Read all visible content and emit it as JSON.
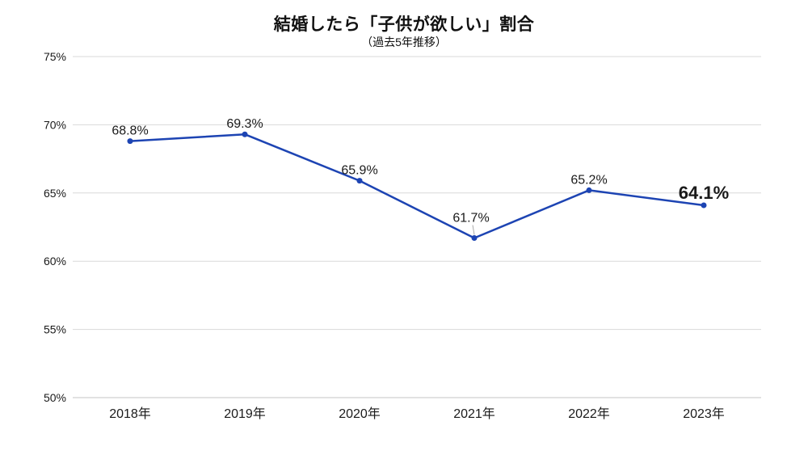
{
  "chart_data": {
    "type": "line",
    "title": "結婚したら「子供が欲しい」割合",
    "subtitle": "（過去5年推移）",
    "categories": [
      "2018年",
      "2019年",
      "2020年",
      "2021年",
      "2022年",
      "2023年"
    ],
    "values": [
      68.8,
      69.3,
      65.9,
      61.7,
      65.2,
      64.1
    ],
    "point_labels": [
      "68.8%",
      "69.3%",
      "65.9%",
      "61.7%",
      "65.2%",
      "64.1%"
    ],
    "ylim": [
      50,
      75
    ],
    "ytick_step": 5,
    "ytick_labels": [
      "50%",
      "55%",
      "60%",
      "65%",
      "70%",
      "75%"
    ],
    "legend": "none",
    "grid": "horizontal",
    "colors": {
      "line": "#1d44b3",
      "marker": "#1d44b3",
      "grid": "#d9d9d9",
      "axis": "#c6c6c6",
      "label": "#1a1a1a",
      "highlight": "#e8191c",
      "leader": "#aaaaaa"
    },
    "highlight_index": 5,
    "leader_index": 3
  }
}
